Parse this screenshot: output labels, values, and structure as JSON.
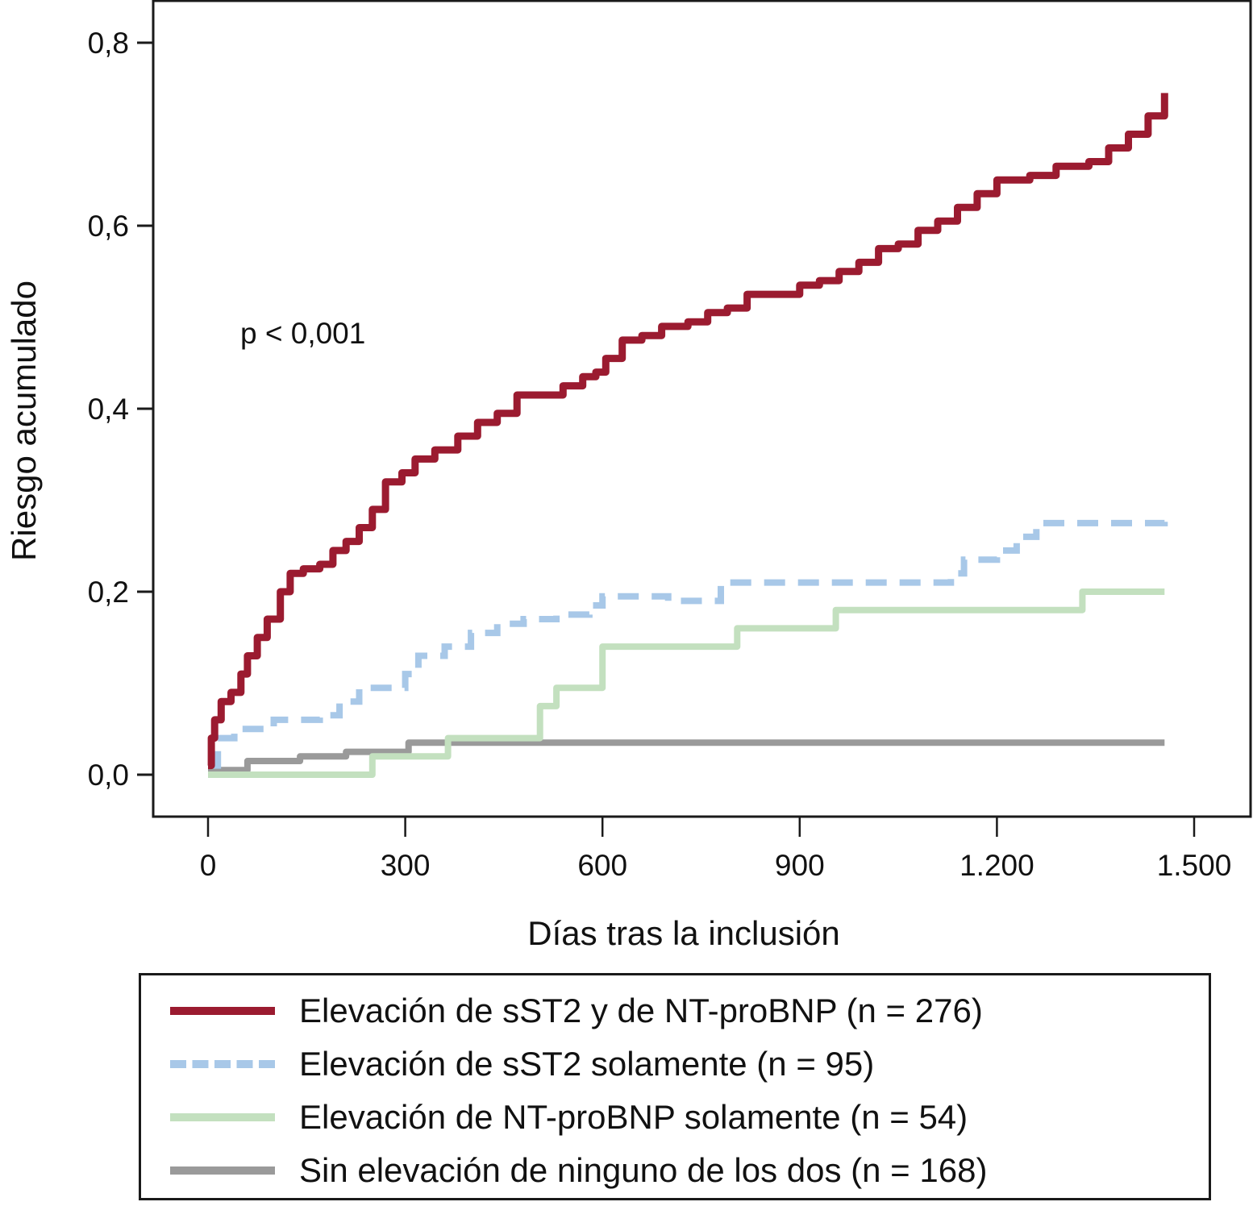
{
  "chart_data": {
    "type": "line",
    "subtype": "step (Kaplan-Meier cumulative risk)",
    "title": "",
    "xlabel": "Días tras la inclusión",
    "ylabel": "Riesgo acumulado",
    "xlim": [
      -80,
      1570
    ],
    "ylim": [
      -0.045,
      0.845
    ],
    "xticks": [
      0,
      300,
      600,
      900,
      1200,
      1500
    ],
    "xtick_labels": [
      "0",
      "300",
      "600",
      "900",
      "1.200",
      "1.500"
    ],
    "yticks": [
      0.0,
      0.2,
      0.4,
      0.6,
      0.8
    ],
    "ytick_labels": [
      "0,0",
      "0,2",
      "0,4",
      "0,6",
      "0,8"
    ],
    "grid": false,
    "legend_position": "bottom",
    "annotations": [
      {
        "text": "p < 0,001",
        "x": 50,
        "y": 0.48
      }
    ],
    "series": [
      {
        "name": "Elevación de sST2 y de NT-proBNP (n = 276)",
        "color": "#9b1b30",
        "style": "solid",
        "points": [
          [
            0,
            0.01
          ],
          [
            5,
            0.04
          ],
          [
            10,
            0.06
          ],
          [
            20,
            0.08
          ],
          [
            35,
            0.09
          ],
          [
            50,
            0.11
          ],
          [
            60,
            0.13
          ],
          [
            75,
            0.15
          ],
          [
            90,
            0.17
          ],
          [
            110,
            0.2
          ],
          [
            125,
            0.22
          ],
          [
            145,
            0.225
          ],
          [
            170,
            0.23
          ],
          [
            190,
            0.245
          ],
          [
            210,
            0.255
          ],
          [
            230,
            0.27
          ],
          [
            250,
            0.29
          ],
          [
            270,
            0.32
          ],
          [
            295,
            0.33
          ],
          [
            315,
            0.345
          ],
          [
            345,
            0.355
          ],
          [
            380,
            0.37
          ],
          [
            410,
            0.385
          ],
          [
            440,
            0.395
          ],
          [
            470,
            0.415
          ],
          [
            510,
            0.415
          ],
          [
            540,
            0.425
          ],
          [
            570,
            0.435
          ],
          [
            590,
            0.44
          ],
          [
            605,
            0.455
          ],
          [
            630,
            0.475
          ],
          [
            660,
            0.48
          ],
          [
            690,
            0.49
          ],
          [
            730,
            0.495
          ],
          [
            760,
            0.505
          ],
          [
            790,
            0.51
          ],
          [
            820,
            0.525
          ],
          [
            870,
            0.525
          ],
          [
            900,
            0.535
          ],
          [
            930,
            0.54
          ],
          [
            960,
            0.55
          ],
          [
            990,
            0.56
          ],
          [
            1020,
            0.575
          ],
          [
            1050,
            0.58
          ],
          [
            1080,
            0.595
          ],
          [
            1110,
            0.605
          ],
          [
            1140,
            0.62
          ],
          [
            1170,
            0.635
          ],
          [
            1200,
            0.65
          ],
          [
            1250,
            0.655
          ],
          [
            1290,
            0.665
          ],
          [
            1340,
            0.67
          ],
          [
            1370,
            0.685
          ],
          [
            1400,
            0.7
          ],
          [
            1430,
            0.72
          ],
          [
            1455,
            0.745
          ]
        ]
      },
      {
        "name": "Elevación de sST2 solamente (n = 95)",
        "color": "#a8c8e8",
        "style": "dashed",
        "points": [
          [
            5,
            0.01
          ],
          [
            15,
            0.04
          ],
          [
            40,
            0.05
          ],
          [
            100,
            0.06
          ],
          [
            170,
            0.065
          ],
          [
            200,
            0.08
          ],
          [
            230,
            0.095
          ],
          [
            280,
            0.095
          ],
          [
            300,
            0.11
          ],
          [
            320,
            0.13
          ],
          [
            360,
            0.14
          ],
          [
            400,
            0.155
          ],
          [
            440,
            0.165
          ],
          [
            480,
            0.17
          ],
          [
            530,
            0.175
          ],
          [
            580,
            0.185
          ],
          [
            600,
            0.195
          ],
          [
            640,
            0.195
          ],
          [
            700,
            0.19
          ],
          [
            760,
            0.19
          ],
          [
            780,
            0.21
          ],
          [
            900,
            0.21
          ],
          [
            1000,
            0.21
          ],
          [
            1100,
            0.21
          ],
          [
            1130,
            0.22
          ],
          [
            1150,
            0.235
          ],
          [
            1200,
            0.245
          ],
          [
            1230,
            0.26
          ],
          [
            1260,
            0.275
          ],
          [
            1300,
            0.275
          ],
          [
            1400,
            0.275
          ],
          [
            1455,
            0.28
          ]
        ]
      },
      {
        "name": "Elevación de NT-proBNP solamente (n = 54)",
        "color": "#c3e0bf",
        "style": "solid",
        "points": [
          [
            0,
            0.0
          ],
          [
            245,
            0.0
          ],
          [
            250,
            0.02
          ],
          [
            360,
            0.02
          ],
          [
            365,
            0.04
          ],
          [
            500,
            0.04
          ],
          [
            505,
            0.075
          ],
          [
            530,
            0.095
          ],
          [
            590,
            0.095
          ],
          [
            600,
            0.14
          ],
          [
            800,
            0.14
          ],
          [
            805,
            0.16
          ],
          [
            950,
            0.16
          ],
          [
            955,
            0.18
          ],
          [
            1325,
            0.18
          ],
          [
            1330,
            0.2
          ],
          [
            1455,
            0.2
          ]
        ]
      },
      {
        "name": "Sin elevación de ninguno de los dos (n = 168)",
        "color": "#9a9a9a",
        "style": "solid",
        "points": [
          [
            0,
            0.005
          ],
          [
            55,
            0.005
          ],
          [
            60,
            0.015
          ],
          [
            130,
            0.015
          ],
          [
            140,
            0.02
          ],
          [
            200,
            0.02
          ],
          [
            210,
            0.025
          ],
          [
            300,
            0.025
          ],
          [
            305,
            0.035
          ],
          [
            1455,
            0.035
          ]
        ]
      }
    ]
  },
  "legend": {
    "items": [
      {
        "label": "Elevación de sST2 y de NT-proBNP (n = 276)",
        "color": "#9b1b30",
        "style": "solid"
      },
      {
        "label": "Elevación de sST2 solamente (n = 95)",
        "color": "#a8c8e8",
        "style": "dashed"
      },
      {
        "label": "Elevación de NT-proBNP solamente (n = 54)",
        "color": "#c3e0bf",
        "style": "solid"
      },
      {
        "label": "Sin elevación de ninguno de los dos (n = 168)",
        "color": "#9a9a9a",
        "style": "solid"
      }
    ]
  }
}
